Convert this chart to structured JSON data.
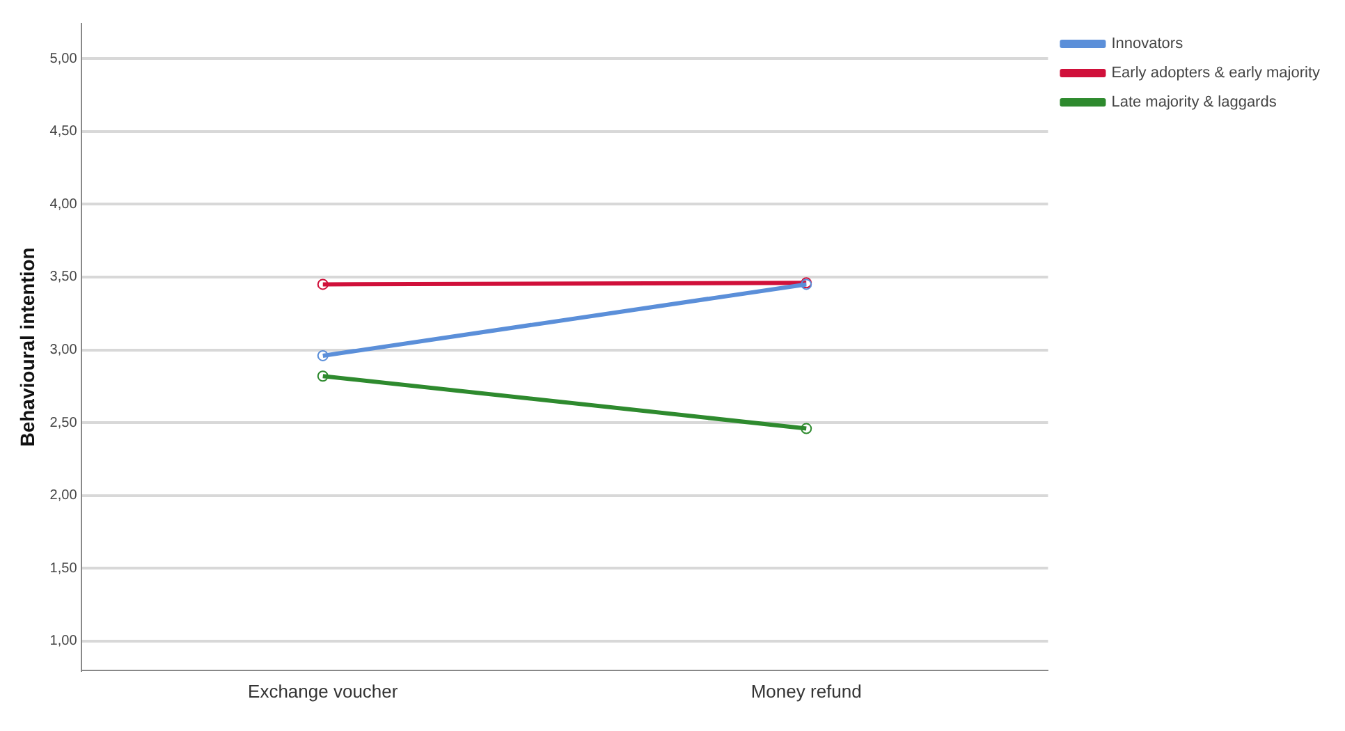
{
  "chart_data": {
    "type": "line",
    "ylabel": "Behavioural intention",
    "categories": [
      "Exchange voucher",
      "Money refund"
    ],
    "series": [
      {
        "name": "Innovators",
        "color": "#5b8fd9",
        "values": [
          2.96,
          3.45
        ]
      },
      {
        "name": "Early adopters & early majority",
        "color": "#d0103a",
        "values": [
          3.45,
          3.46
        ]
      },
      {
        "name": "Late majority & laggards",
        "color": "#2e8a2e",
        "values": [
          2.82,
          2.46
        ]
      }
    ],
    "ylim": [
      0.8,
      5.24
    ],
    "yticks": [
      {
        "value": 1,
        "label": "1,00"
      },
      {
        "value": 1.5,
        "label": "1,50"
      },
      {
        "value": 2,
        "label": "2,00"
      },
      {
        "value": 2.5,
        "label": "2,50"
      },
      {
        "value": 3,
        "label": "3,00"
      },
      {
        "value": 3.5,
        "label": "3,50"
      },
      {
        "value": 4,
        "label": "4,00"
      },
      {
        "value": 4.5,
        "label": "4,50"
      },
      {
        "value": 5,
        "label": "5,00"
      }
    ],
    "grid": "y",
    "legend": "right",
    "marker": "circle",
    "line_style": "solid"
  }
}
